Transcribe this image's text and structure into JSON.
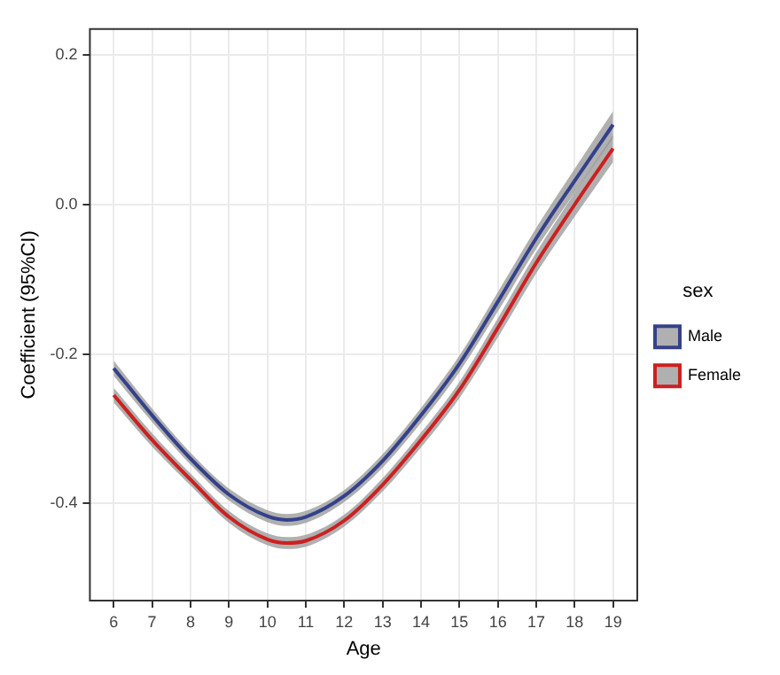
{
  "chart_data": {
    "type": "line",
    "xlabel": "Age",
    "ylabel": "Coefficient (95%CI)",
    "legend_title": "sex",
    "legend": "right",
    "grid": true,
    "xlim": [
      5.38,
      19.63
    ],
    "xticks": [
      6,
      7,
      8,
      9,
      10,
      11,
      12,
      13,
      14,
      15,
      16,
      17,
      18,
      19
    ],
    "ylim": [
      -0.53,
      0.235
    ],
    "yticks": [
      0.2,
      {
        "value": 0,
        "label": "0.0"
      },
      -0.2,
      -0.4
    ],
    "x": [
      6,
      7,
      8,
      9,
      10,
      10.5,
      11,
      12,
      13,
      14,
      15,
      16,
      17,
      18,
      19
    ],
    "series": [
      {
        "name": "Male",
        "color": "#34418a",
        "values": [
          -0.219,
          -0.282,
          -0.34,
          -0.388,
          -0.417,
          -0.422,
          -0.418,
          -0.39,
          -0.343,
          -0.282,
          -0.213,
          -0.13,
          -0.045,
          0.032,
          0.107
        ],
        "lower": [
          -0.229,
          -0.291,
          -0.348,
          -0.396,
          -0.425,
          -0.43,
          -0.426,
          -0.398,
          -0.352,
          -0.292,
          -0.224,
          -0.143,
          -0.059,
          0.016,
          0.089
        ],
        "upper": [
          -0.209,
          -0.273,
          -0.332,
          -0.38,
          -0.409,
          -0.414,
          -0.41,
          -0.382,
          -0.334,
          -0.272,
          -0.202,
          -0.117,
          -0.031,
          0.048,
          0.125
        ]
      },
      {
        "name": "Female",
        "color": "#cc2020",
        "values": [
          -0.255,
          -0.315,
          -0.368,
          -0.418,
          -0.448,
          -0.453,
          -0.45,
          -0.423,
          -0.375,
          -0.315,
          -0.248,
          -0.165,
          -0.078,
          0.0,
          0.075
        ],
        "lower": [
          -0.265,
          -0.324,
          -0.376,
          -0.426,
          -0.456,
          -0.461,
          -0.458,
          -0.431,
          -0.384,
          -0.325,
          -0.259,
          -0.178,
          -0.092,
          -0.016,
          0.057
        ],
        "upper": [
          -0.245,
          -0.306,
          -0.36,
          -0.41,
          -0.44,
          -0.445,
          -0.442,
          -0.415,
          -0.366,
          -0.305,
          -0.237,
          -0.152,
          -0.064,
          0.016,
          0.093
        ]
      }
    ]
  }
}
